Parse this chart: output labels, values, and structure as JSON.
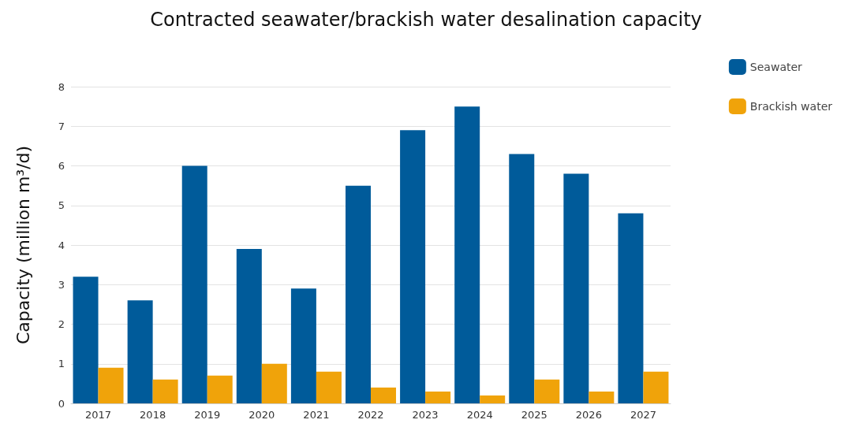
{
  "chart_data": {
    "type": "bar",
    "title": "Contracted seawater/brackish water desalination capacity",
    "ylabel": "Capacity (million m³/d)",
    "categories": [
      "2017",
      "2018",
      "2019",
      "2020",
      "2021",
      "2022",
      "2023",
      "2024",
      "2025",
      "2026",
      "2027"
    ],
    "series": [
      {
        "name": "Seawater",
        "color": "#005b9a",
        "values": [
          3.2,
          2.6,
          6.0,
          3.9,
          2.9,
          5.5,
          6.9,
          7.5,
          6.3,
          5.8,
          4.8
        ]
      },
      {
        "name": "Brackish water",
        "color": "#f0a30a",
        "values": [
          0.9,
          0.6,
          0.7,
          1.0,
          0.8,
          0.4,
          0.3,
          0.2,
          0.6,
          0.3,
          0.8
        ]
      }
    ],
    "ylim": [
      0,
      8
    ],
    "yticks": [
      0,
      1,
      2,
      3,
      4,
      5,
      6,
      7,
      8
    ],
    "grid": "y",
    "legend": "top right"
  }
}
